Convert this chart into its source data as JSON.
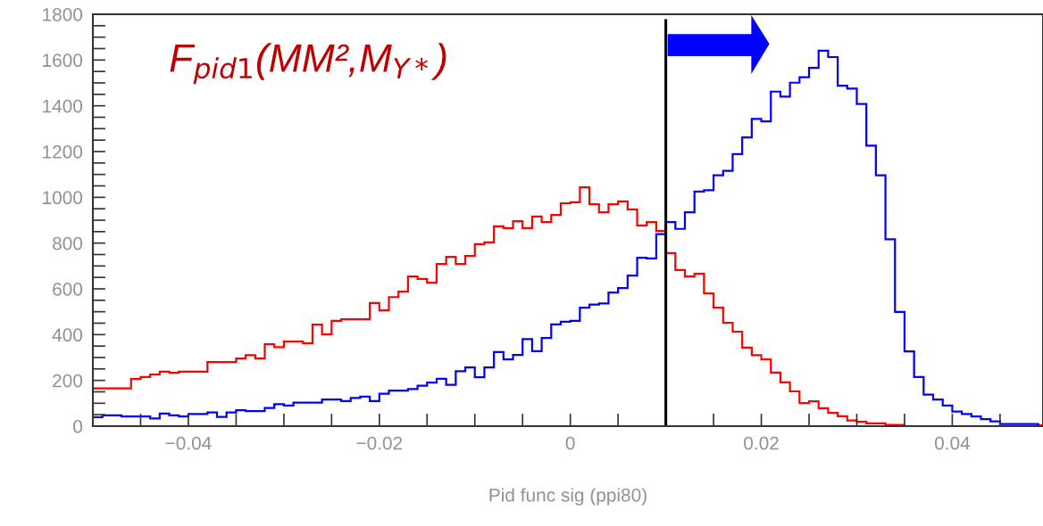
{
  "chart_data": {
    "type": "histogram",
    "xlabel": "Pid func sig (ppi80)",
    "annotations": [
      "F$_{pid1}$(MM²,M$_{Y*}$)"
    ],
    "bins": [
      -0.05,
      -0.049,
      -0.048,
      -0.047,
      -0.046,
      -0.045,
      -0.044,
      -0.043,
      -0.042,
      -0.041,
      -0.04,
      -0.039,
      -0.038,
      -0.037,
      -0.036,
      -0.035,
      -0.034,
      -0.033,
      -0.032,
      -0.031,
      -0.03,
      -0.029,
      -0.028,
      -0.027,
      -0.026,
      -0.025,
      -0.024,
      -0.023,
      -0.022,
      -0.021,
      -0.02,
      -0.019,
      -0.018,
      -0.017,
      -0.016,
      -0.015,
      -0.014,
      -0.013,
      -0.012,
      -0.011,
      -0.01,
      -0.009,
      -0.008,
      -0.007,
      -0.006,
      -0.005,
      -0.004,
      -0.003,
      -0.002,
      -0.001,
      0,
      0.001,
      0.002,
      0.003,
      0.004,
      0.005,
      0.006,
      0.007,
      0.008,
      0.009,
      0.01,
      0.011,
      0.012,
      0.013,
      0.014,
      0.015,
      0.016,
      0.017,
      0.018,
      0.019,
      0.02,
      0.021,
      0.022,
      0.023,
      0.024,
      0.025,
      0.026,
      0.027,
      0.028,
      0.029,
      0.03,
      0.031,
      0.032,
      0.033,
      0.034,
      0.035,
      0.036,
      0.037,
      0.038,
      0.039,
      0.04,
      0.041,
      0.042,
      0.043,
      0.044,
      0.045,
      0.046,
      0.047,
      0.048,
      0.049,
      0.05
    ],
    "series": [
      {
        "color": "#ff0000",
        "values": [
          165,
          165,
          165,
          165,
          206,
          215,
          226,
          238,
          233,
          238,
          238,
          238,
          280,
          280,
          280,
          296,
          310,
          296,
          358,
          345,
          370,
          370,
          362,
          444,
          401,
          460,
          467,
          467,
          467,
          538,
          506,
          564,
          588,
          654,
          643,
          627,
          709,
          740,
          709,
          744,
          795,
          803,
          873,
          865,
          896,
          865,
          916,
          892,
          923,
          974,
          978,
          1044,
          970,
          935,
          970,
          982,
          947,
          877,
          892,
          853,
          756,
          682,
          654,
          666,
          580,
          518,
          452,
          413,
          343,
          310,
          292,
          234,
          191,
          152,
          101,
          109,
          78,
          58,
          43,
          25,
          19,
          12,
          12,
          5,
          5,
          0,
          0,
          0,
          0,
          0,
          0,
          0,
          0,
          0,
          0,
          0,
          0,
          0,
          0,
          3
        ]
      },
      {
        "color": "#0000ff",
        "values": [
          39,
          47,
          47,
          42,
          42,
          42,
          34,
          55,
          47,
          42,
          53,
          53,
          60,
          40,
          60,
          70,
          66,
          66,
          79,
          96,
          90,
          103,
          103,
          103,
          116,
          116,
          110,
          123,
          129,
          110,
          142,
          155,
          155,
          162,
          177,
          190,
          207,
          181,
          240,
          257,
          214,
          257,
          324,
          292,
          311,
          380,
          328,
          385,
          445,
          456,
          460,
          518,
          531,
          536,
          584,
          603,
          658,
          736,
          733,
          839,
          892,
          862,
          935,
          1025,
          1031,
          1096,
          1116,
          1189,
          1262,
          1343,
          1332,
          1462,
          1440,
          1501,
          1525,
          1566,
          1641,
          1613,
          1488,
          1475,
          1408,
          1226,
          1096,
          817,
          499,
          327,
          215,
          138,
          116,
          90,
          64,
          53,
          42,
          31,
          21,
          9,
          9,
          9,
          9,
          0
        ]
      }
    ],
    "xlim": [
      -0.05,
      0.0495
    ],
    "xticks": [
      {
        "value": -0.045,
        "label": null
      },
      {
        "value": -0.04,
        "label": "−0.04"
      },
      {
        "value": -0.035,
        "label": null
      },
      {
        "value": -0.03,
        "label": null
      },
      {
        "value": -0.025,
        "label": null
      },
      {
        "value": -0.02,
        "label": "−0.02"
      },
      {
        "value": -0.015,
        "label": null
      },
      {
        "value": -0.01,
        "label": null
      },
      {
        "value": -0.005,
        "label": null
      },
      0,
      {
        "value": 0.005,
        "label": null
      },
      {
        "value": 0.01,
        "label": null
      },
      {
        "value": 0.015,
        "label": null
      },
      0.02,
      {
        "value": 0.025,
        "label": null
      },
      {
        "value": 0.03,
        "label": null
      },
      {
        "value": 0.035,
        "label": null
      },
      0.04,
      {
        "value": 0.045,
        "label": null
      }
    ],
    "ylim": [
      0,
      1800
    ],
    "yticks": [
      0,
      {
        "value": 50,
        "label": null
      },
      {
        "value": 100,
        "label": null
      },
      {
        "value": 150,
        "label": null
      },
      200,
      {
        "value": 250,
        "label": null
      },
      {
        "value": 300,
        "label": null
      },
      {
        "value": 350,
        "label": null
      },
      400,
      {
        "value": 450,
        "label": null
      },
      {
        "value": 500,
        "label": null
      },
      {
        "value": 550,
        "label": null
      },
      600,
      {
        "value": 650,
        "label": null
      },
      {
        "value": 700,
        "label": null
      },
      {
        "value": 750,
        "label": null
      },
      800,
      {
        "value": 850,
        "label": null
      },
      {
        "value": 900,
        "label": null
      },
      {
        "value": 950,
        "label": null
      },
      1000,
      {
        "value": 1050,
        "label": null
      },
      {
        "value": 1100,
        "label": null
      },
      {
        "value": 1150,
        "label": null
      },
      1200,
      {
        "value": 1250,
        "label": null
      },
      {
        "value": 1300,
        "label": null
      },
      {
        "value": 1350,
        "label": null
      },
      1400,
      {
        "value": 1450,
        "label": null
      },
      {
        "value": 1500,
        "label": null
      },
      {
        "value": 1550,
        "label": null
      },
      1600,
      {
        "value": 1650,
        "label": null
      },
      {
        "value": 1700,
        "label": null
      },
      {
        "value": 1750,
        "label": null
      },
      1800
    ],
    "ref_lines": [
      {
        "axis": "x",
        "value": 0.01,
        "color": "#000000",
        "line_style": "solid"
      }
    ],
    "grid": false,
    "legend": false
  }
}
